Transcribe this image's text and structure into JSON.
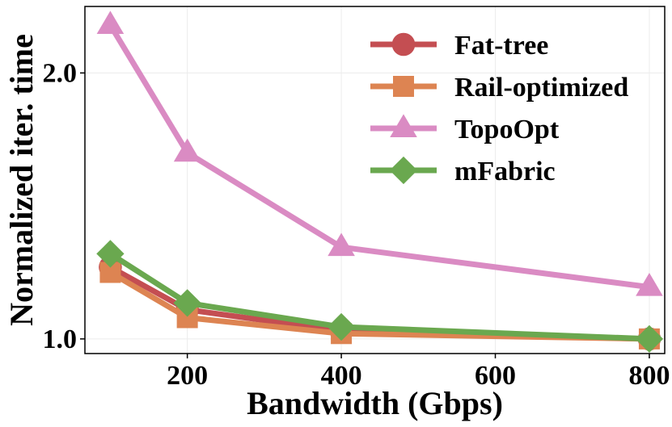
{
  "chart_data": {
    "type": "line",
    "title": "",
    "xlabel": "Bandwidth (Gbps)",
    "ylabel": "Normalized iter. time",
    "xlim": [
      67,
      820
    ],
    "ylim": [
      0.945,
      2.25
    ],
    "xticks": [
      200,
      400,
      600,
      800
    ],
    "yticks": [
      1.0,
      2.0
    ],
    "xtick_labels": [
      "200",
      "400",
      "600",
      "800"
    ],
    "ytick_labels": [
      "1.0",
      "2.0"
    ],
    "grid": true,
    "legend_position": "top-right",
    "x": [
      100,
      200,
      400,
      800
    ],
    "series": [
      {
        "name": "Fat-tree",
        "marker": "circle",
        "color": "#c44e52",
        "values": [
          1.27,
          1.11,
          1.03,
          1.0
        ]
      },
      {
        "name": "Rail-optimized",
        "marker": "square",
        "color": "#dd8452",
        "values": [
          1.25,
          1.08,
          1.02,
          1.0
        ]
      },
      {
        "name": "TopoOpt",
        "marker": "triangle",
        "color": "#da8bc3",
        "values": [
          2.18,
          1.7,
          1.345,
          1.195
        ]
      },
      {
        "name": "mFabric",
        "marker": "diamond",
        "color": "#6aa84f",
        "values": [
          1.32,
          1.135,
          1.045,
          1.0
        ]
      }
    ]
  }
}
